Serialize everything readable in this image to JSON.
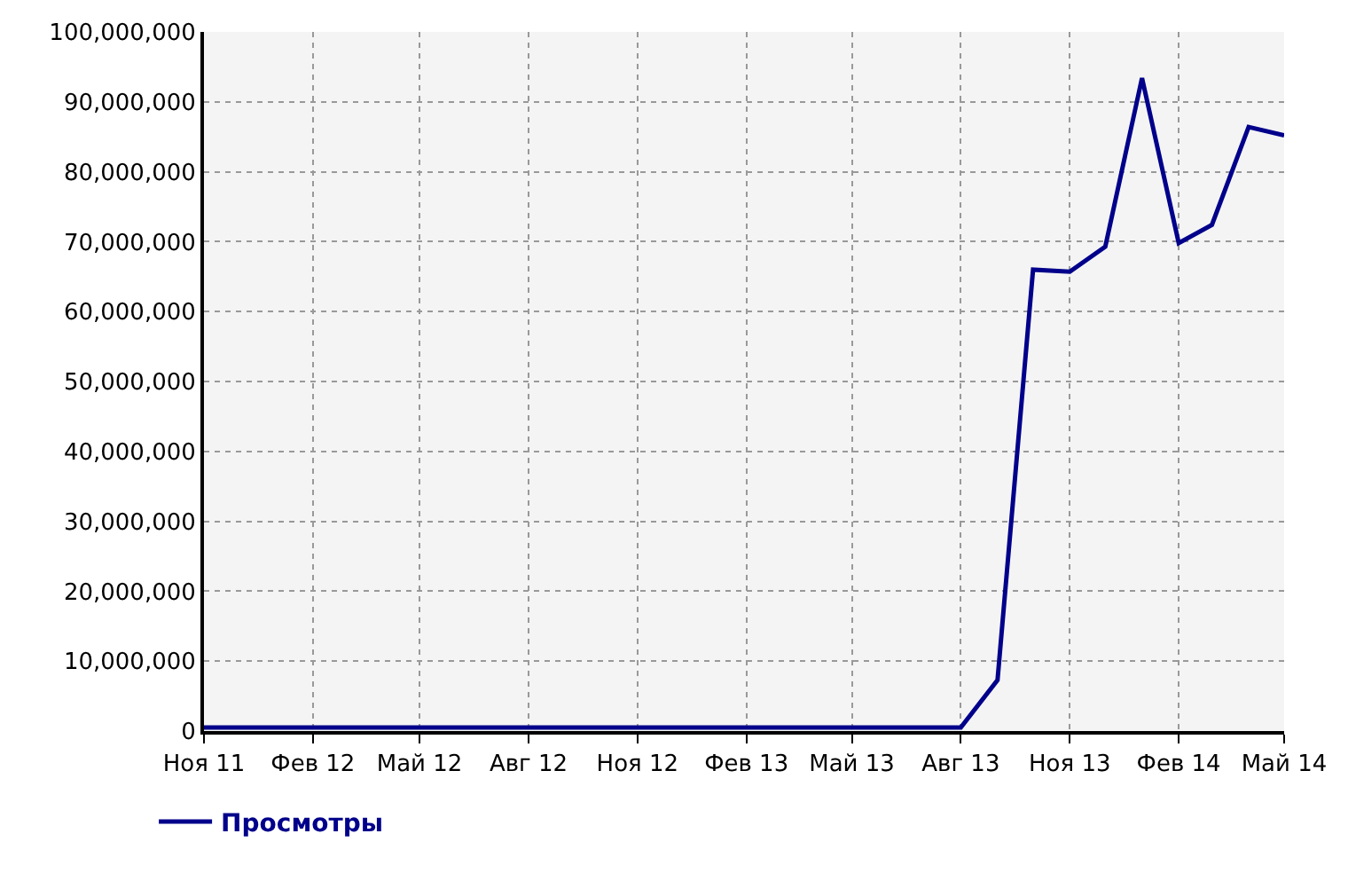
{
  "chart_data": {
    "type": "line",
    "x": [
      "2011-11",
      "2011-12",
      "2012-01",
      "2012-02",
      "2012-03",
      "2012-04",
      "2012-05",
      "2012-06",
      "2012-07",
      "2012-08",
      "2012-09",
      "2012-10",
      "2012-11",
      "2012-12",
      "2013-01",
      "2013-02",
      "2013-03",
      "2013-04",
      "2013-05",
      "2013-06",
      "2013-07",
      "2013-08",
      "2013-09",
      "2013-10",
      "2013-11",
      "2013-12",
      "2014-01",
      "2014-02",
      "2014-03",
      "2014-04",
      "2014-05"
    ],
    "series": [
      {
        "name": "Просмотры",
        "color": "#00008b",
        "values": [
          500000,
          500000,
          500000,
          500000,
          500000,
          500000,
          500000,
          500000,
          500000,
          500000,
          500000,
          500000,
          500000,
          500000,
          500000,
          500000,
          500000,
          500000,
          500000,
          500000,
          500000,
          500000,
          7300000,
          66000000,
          65700000,
          69300000,
          93400000,
          69800000,
          72400000,
          86400000,
          85200000
        ]
      }
    ],
    "xlim": [
      "2011-11",
      "2014-05"
    ],
    "xticks": [
      {
        "value": "2011-11",
        "label": "Ноя 11"
      },
      {
        "value": "2012-02",
        "label": "Фев 12"
      },
      {
        "value": "2012-05",
        "label": "Май 12"
      },
      {
        "value": "2012-08",
        "label": "Авг 12"
      },
      {
        "value": "2012-11",
        "label": "Ноя 12"
      },
      {
        "value": "2013-02",
        "label": "Фев 13"
      },
      {
        "value": "2013-05",
        "label": "Май 13"
      },
      {
        "value": "2013-08",
        "label": "Авг 13"
      },
      {
        "value": "2013-11",
        "label": "Ноя 13"
      },
      {
        "value": "2014-02",
        "label": "Фев 14"
      },
      {
        "value": "2014-05",
        "label": "Май 14"
      }
    ],
    "ylim": [
      0,
      100000000
    ],
    "yticks": [
      {
        "value": 0,
        "label": "0"
      },
      {
        "value": 10000000,
        "label": "10,000,000"
      },
      {
        "value": 20000000,
        "label": "20,000,000"
      },
      {
        "value": 30000000,
        "label": "30,000,000"
      },
      {
        "value": 40000000,
        "label": "40,000,000"
      },
      {
        "value": 50000000,
        "label": "50,000,000"
      },
      {
        "value": 60000000,
        "label": "60,000,000"
      },
      {
        "value": 70000000,
        "label": "70,000,000"
      },
      {
        "value": 80000000,
        "label": "80,000,000"
      },
      {
        "value": 90000000,
        "label": "90,000,000"
      },
      {
        "value": 100000000,
        "label": "100,000,000"
      }
    ],
    "grid": true,
    "legend": "bottom left",
    "marker": "none",
    "line_style": "solid"
  }
}
